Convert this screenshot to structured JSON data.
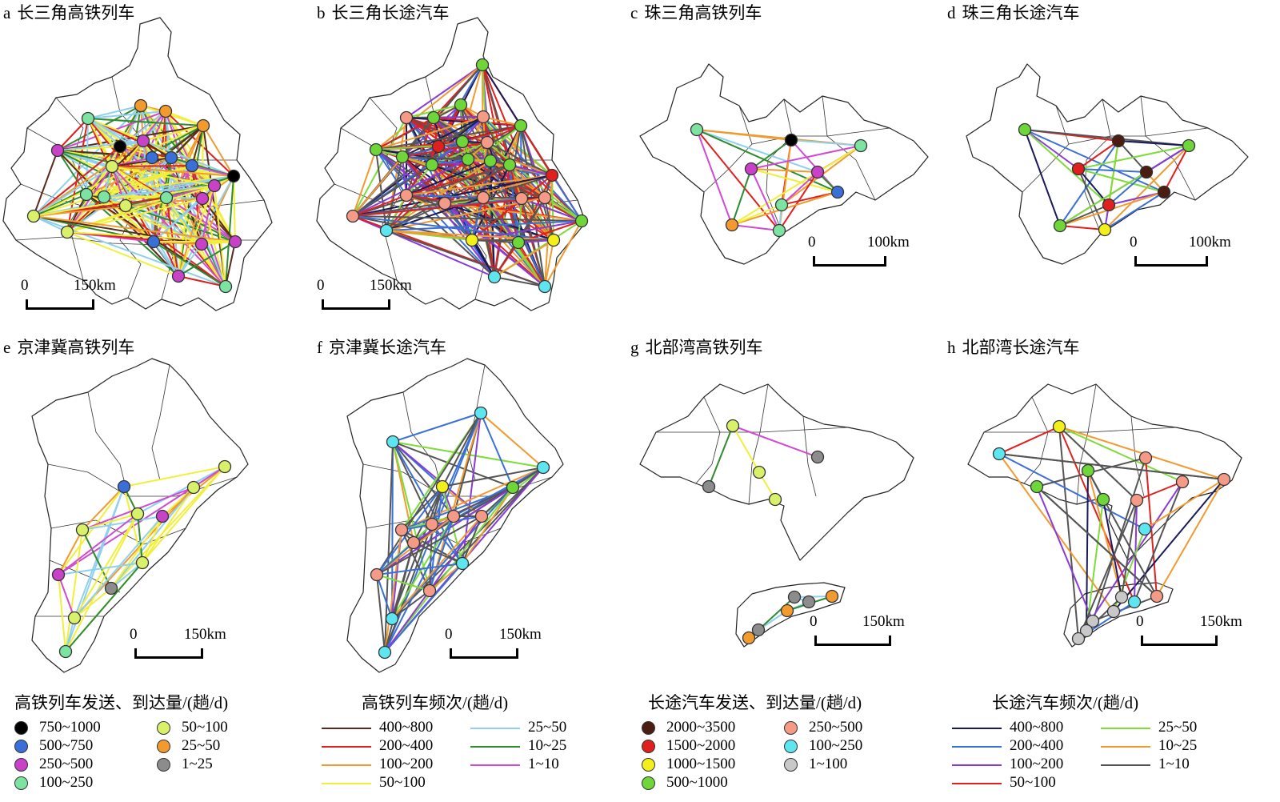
{
  "panels": [
    {
      "letter": "a",
      "title": "长三角高铁列车",
      "scale_zero": "0",
      "scale_dist": "150km"
    },
    {
      "letter": "b",
      "title": "长三角长途汽车",
      "scale_zero": "0",
      "scale_dist": "150km"
    },
    {
      "letter": "c",
      "title": "珠三角高铁列车",
      "scale_zero": "0",
      "scale_dist": "100km"
    },
    {
      "letter": "d",
      "title": "珠三角长途汽车",
      "scale_zero": "0",
      "scale_dist": "100km"
    },
    {
      "letter": "e",
      "title": "京津冀高铁列车",
      "scale_zero": "0",
      "scale_dist": "150km"
    },
    {
      "letter": "f",
      "title": "京津冀长途汽车",
      "scale_zero": "0",
      "scale_dist": "150km"
    },
    {
      "letter": "g",
      "title": "北部湾高铁列车",
      "scale_zero": "0",
      "scale_dist": "150km"
    },
    {
      "letter": "h",
      "title": "北部湾长途汽车",
      "scale_zero": "0",
      "scale_dist": "150km"
    }
  ],
  "legends": {
    "rail_volume": {
      "title": "高铁列车发送、到达量/(趟/d)",
      "items": [
        {
          "label": "750~1000",
          "color": "#000000"
        },
        {
          "label": "500~750",
          "color": "#3a6fd8"
        },
        {
          "label": "250~500",
          "color": "#c742c7"
        },
        {
          "label": "100~250",
          "color": "#7de3a0"
        },
        {
          "label": "50~100",
          "color": "#d8f06a"
        },
        {
          "label": "25~50",
          "color": "#f29a2e"
        },
        {
          "label": "1~25",
          "color": "#8c8c8c"
        }
      ]
    },
    "rail_freq": {
      "title": "高铁列车频次/(趟/d)",
      "items": [
        {
          "label": "400~800",
          "color": "#5a2a1a"
        },
        {
          "label": "200~400",
          "color": "#e0201e"
        },
        {
          "label": "100~200",
          "color": "#f09a30"
        },
        {
          "label": "50~100",
          "color": "#f2ef3a"
        },
        {
          "label": "25~50",
          "color": "#8fd0ee"
        },
        {
          "label": "10~25",
          "color": "#2e8b2e"
        },
        {
          "label": "1~10",
          "color": "#d04ad4"
        }
      ]
    },
    "bus_volume": {
      "title": "长途汽车发送、到达量/(趟/d)",
      "items": [
        {
          "label": "2000~3500",
          "color": "#4a1c12"
        },
        {
          "label": "1500~2000",
          "color": "#e0201e"
        },
        {
          "label": "1000~1500",
          "color": "#f2ef1a"
        },
        {
          "label": "500~1000",
          "color": "#6fd63a"
        },
        {
          "label": "250~500",
          "color": "#f49a86"
        },
        {
          "label": "100~250",
          "color": "#5ee6f0"
        },
        {
          "label": "1~100",
          "color": "#c8c8c8"
        }
      ]
    },
    "bus_freq": {
      "title": "长途汽车频次/(趟/d)",
      "items": [
        {
          "label": "400~800",
          "color": "#1a1a5a"
        },
        {
          "label": "200~400",
          "color": "#3a6fd8"
        },
        {
          "label": "100~200",
          "color": "#8a3ad6"
        },
        {
          "label": "50~100",
          "color": "#e0201e"
        },
        {
          "label": "25~50",
          "color": "#7ddc3a"
        },
        {
          "label": "10~25",
          "color": "#f09a30"
        },
        {
          "label": "1~10",
          "color": "#555555"
        }
      ]
    }
  }
}
